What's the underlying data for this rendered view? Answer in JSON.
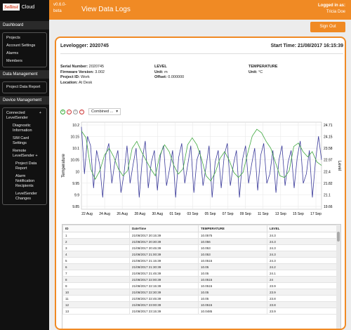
{
  "header": {
    "logo_part1": "Solinst",
    "logo_part2": "Cloud",
    "version": "v0.6.0-beta",
    "title": "View Data Logs",
    "logged_in_label": "Logged in as:",
    "user": "Tricia Doe"
  },
  "sidebar": {
    "sections": [
      {
        "title": "Dashboard",
        "items": [
          "Projects",
          "Account Settings",
          "Alarms",
          "Members"
        ]
      },
      {
        "title": "Data Management",
        "items": [
          "Project Data Report"
        ]
      },
      {
        "title": "Device Management"
      }
    ],
    "device": {
      "connected": "Connected LevelSender",
      "connected_items": [
        "Diagnostic Information",
        "SIM Card Settings"
      ],
      "remote": "Remote LevelSender",
      "remote_items": [
        "Project Data Report",
        "Alarm Notification Recipients",
        "LevelSender Changes"
      ],
      "plus": "+"
    }
  },
  "signout_label": "Sign Out",
  "logger": {
    "title": "Levelogger: 2020745",
    "start_time": "Start Time: 21/08/2017 16:15:39",
    "serial_label": "Serial Number:",
    "serial": "2020745",
    "firmware_label": "Firmware Version:",
    "firmware": "3.002",
    "project_label": "Project ID:",
    "project": "Work",
    "location_label": "Location:",
    "location": "At Desk",
    "level_heading": "LEVEL",
    "level_unit_label": "Unit:",
    "level_unit": "m",
    "offset_label": "Offset:",
    "offset": "0.000000",
    "temp_heading": "TEMPERATURE",
    "temp_unit_label": "Unit:",
    "temp_unit": "°C"
  },
  "controls": {
    "combo_value": "Combined ..."
  },
  "chart_data": {
    "type": "line",
    "xlabel": "",
    "ylabel_left": "Temperature",
    "ylabel_right": "Level",
    "x_ticks": [
      "22 Aug",
      "24 Aug",
      "26 Aug",
      "28 Aug",
      "30 Aug",
      "01 Sep",
      "03 Sep",
      "05 Sep",
      "07 Sep",
      "09 Sep",
      "11 Sep",
      "13 Sep",
      "15 Sep",
      "17 Sep"
    ],
    "y_left_ticks": [
      "10.2",
      "10.15",
      "10.1",
      "10.05",
      "10",
      "9.95",
      "9.9",
      "9.85"
    ],
    "y_left_range": [
      9.85,
      10.22
    ],
    "y_right_ticks": [
      "24.71",
      "24.15",
      "23.58",
      "22.97",
      "22.4",
      "21.82",
      "21.1",
      "19.66"
    ],
    "y_right_range": [
      19.66,
      24.71
    ],
    "series": [
      {
        "axis": "left",
        "color": "#3a3a9a",
        "values": [
          10.2,
          10.0,
          10.16,
          10.12,
          9.94,
          10.1,
          10.04,
          9.9,
          10.08,
          10.13,
          9.96,
          10.05,
          10.1,
          9.92,
          10.0,
          10.12,
          9.96,
          10.04,
          10.11,
          9.9,
          10.06,
          10.14,
          9.94,
          10.05,
          10.1,
          9.93,
          10.08,
          10.12,
          9.95,
          10.02,
          10.1,
          9.9,
          10.07,
          10.13,
          9.96,
          10.04,
          10.12,
          9.92,
          10.06,
          10.1,
          9.95,
          10.03,
          10.12,
          9.9,
          10.05,
          10.1,
          9.94,
          10.08,
          10.13,
          9.95,
          10.04,
          10.1,
          9.9,
          10.06,
          10.12,
          9.96,
          10.04,
          10.11,
          9.93,
          10.08,
          10.13,
          9.96,
          10.0,
          10.1,
          9.92,
          10.06,
          10.12,
          9.95,
          10.05,
          10.1,
          9.94,
          10.07,
          10.14,
          9.96,
          10.0,
          10.1,
          9.9,
          10.05,
          10.16,
          10.06
        ]
      },
      {
        "axis": "right",
        "color": "#3fa83f",
        "values": [
          24.2,
          23.8,
          22.0,
          21.4,
          21.9,
          22.8,
          23.2,
          22.7,
          22.0,
          21.6,
          21.9,
          23.2,
          23.6,
          23.0,
          22.5,
          22.0,
          21.6,
          22.8,
          23.4,
          23.0,
          22.2,
          21.7,
          22.0,
          23.4,
          23.8,
          23.4,
          22.6,
          21.6,
          21.3,
          21.8,
          22.6,
          23.0,
          22.5,
          21.8,
          21.5,
          21.8,
          22.9,
          23.9,
          24.3,
          24.1,
          23.6,
          23.2,
          22.4,
          21.6,
          21.5,
          21.9,
          23.3,
          23.5,
          23.0,
          22.7,
          23.0,
          22.4,
          22.2
        ]
      }
    ]
  },
  "table": {
    "headers": [
      "ID",
      "DateTime",
      "TEMPERATURE",
      "LEVEL"
    ],
    "rows": [
      [
        "1",
        "21/08/2017 20:15:39",
        "10.0575",
        "24.3"
      ],
      [
        "2",
        "21/08/2017 20:30:39",
        "10.056",
        "24.3"
      ],
      [
        "3",
        "21/08/2017 20:45:39",
        "10.053",
        "24.3"
      ],
      [
        "4",
        "21/08/2017 21:00:39",
        "10.053",
        "24.3"
      ],
      [
        "5",
        "21/08/2017 21:15:39",
        "10.0515",
        "24.3"
      ],
      [
        "6",
        "21/08/2017 21:30:39",
        "10.05",
        "24.2"
      ],
      [
        "7",
        "21/08/2017 21:45:39",
        "10.05",
        "24.1"
      ],
      [
        "8",
        "21/08/2017 22:00:39",
        "10.0515",
        "24"
      ],
      [
        "9",
        "21/08/2017 22:15:39",
        "10.0515",
        "23.9"
      ],
      [
        "10",
        "21/08/2017 22:30:39",
        "10.05",
        "23.9"
      ],
      [
        "11",
        "21/08/2017 22:45:39",
        "10.05",
        "23.8"
      ],
      [
        "12",
        "21/08/2017 23:00:39",
        "10.0515",
        "23.8"
      ],
      [
        "13",
        "21/08/2017 23:15:39",
        "10.0485",
        "23.9"
      ]
    ]
  }
}
